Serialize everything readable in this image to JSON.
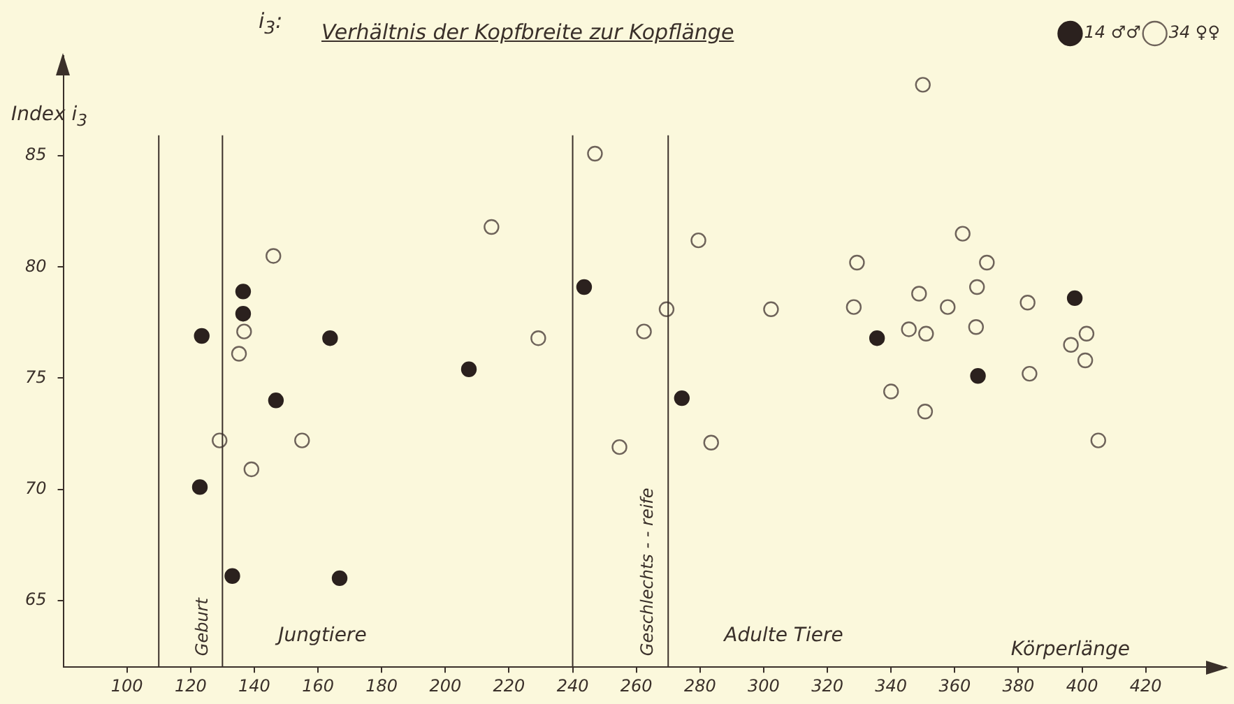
{
  "chart_data": {
    "type": "scatter",
    "title": "Verhältnis der Kopfbreite zur Kopflänge",
    "subtitle": "i$_{3}$:",
    "xlabel": "Körperlänge",
    "ylabel": "Index i$_{3}$",
    "xlim": [
      80,
      445
    ],
    "ylim": [
      62,
      89.5
    ],
    "xticks": [
      100,
      120,
      140,
      160,
      180,
      200,
      220,
      240,
      260,
      280,
      300,
      320,
      340,
      360,
      380,
      400,
      420
    ],
    "yticks": [
      65,
      70,
      75,
      80,
      85
    ],
    "grid": false,
    "legend": "top right",
    "marker": "circle",
    "series": [
      {
        "name": "14 ♂♂",
        "color": "#2b211e",
        "x": [
          123.5,
          136.5,
          136.5,
          163.8,
          243.6,
          146.8,
          207.4,
          122.9,
          133.1,
          166.8,
          335.6,
          397.7,
          274.3,
          367.3
        ],
        "values": [
          76.9,
          78.9,
          77.9,
          76.8,
          79.1,
          74.0,
          75.4,
          70.1,
          66.1,
          66.0,
          76.8,
          78.6,
          74.1,
          75.1
        ]
      },
      {
        "name": "34 ♀♀",
        "color": "#6e635a",
        "x": [
          247,
          214.5,
          146,
          136.8,
          135.2,
          229.2,
          129.1,
          155,
          139.1,
          254.7,
          350,
          279.5,
          362.5,
          329.3,
          370.1,
          367,
          348.8,
          328.3,
          357.8,
          382.9,
          302.3,
          269.5,
          262.4,
          345.6,
          351,
          366.7,
          401.4,
          396.5,
          401,
          383.5,
          340,
          350.7,
          405.1,
          283.5
        ],
        "values": [
          85.1,
          81.8,
          80.5,
          77.1,
          76.1,
          76.8,
          72.2,
          72.2,
          70.9,
          71.9,
          88.2,
          81.2,
          81.5,
          80.2,
          80.2,
          79.1,
          78.8,
          78.2,
          78.2,
          78.4,
          78.1,
          78.1,
          77.1,
          77.2,
          77.0,
          77.3,
          77.0,
          76.5,
          75.8,
          75.2,
          74.4,
          73.5,
          72.2,
          72.1
        ]
      }
    ],
    "ref_lines": [
      {
        "axis": "x",
        "value": 110
      },
      {
        "axis": "x",
        "value": 130,
        "label": "Geburt"
      },
      {
        "axis": "x",
        "value": 240
      },
      {
        "axis": "x",
        "value": 270,
        "label": "Geschlechts - - reife"
      }
    ],
    "annotations": [
      "Jungtiere",
      "Adulte Tiere"
    ]
  }
}
